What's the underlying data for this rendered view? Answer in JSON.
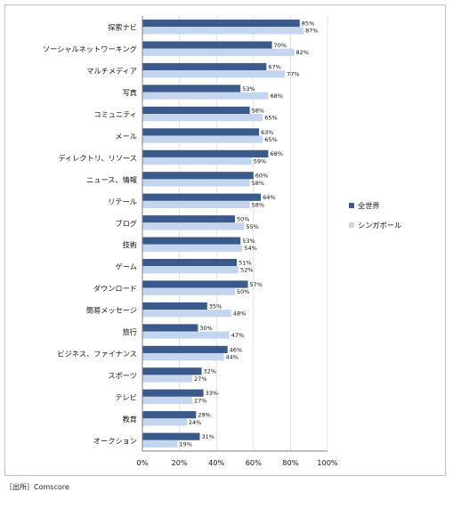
{
  "chart_data": {
    "type": "bar",
    "orientation": "horizontal",
    "categories": [
      "探索ナビ",
      "ソーシャルネットワーキング",
      "マルチメディア",
      "写真",
      "コミュニティ",
      "メール",
      "ディレクトリ、リソース",
      "ニュース、情報",
      "リテール",
      "ブログ",
      "技術",
      "ゲーム",
      "ダウンロード",
      "簡易メッセージ",
      "旅行",
      "ビジネス、ファイナンス",
      "スポーツ",
      "テレビ",
      "教育",
      "オークション"
    ],
    "series": [
      {
        "name": "全世界",
        "color": "#3a5a8c",
        "values": [
          85,
          70,
          67,
          53,
          58,
          63,
          68,
          60,
          64,
          50,
          53,
          51,
          57,
          35,
          30,
          46,
          32,
          33,
          29,
          31
        ],
        "labels": [
          "85%",
          "70%",
          "67%",
          "53%",
          "58%",
          "63%",
          "68%",
          "60%",
          "64%",
          "50%",
          "53%",
          "51%",
          "57%",
          "35%",
          "30%",
          "46%",
          "32%",
          "33%",
          "29%",
          "31%"
        ]
      },
      {
        "name": "シンガポール",
        "color": "#c4d6ef",
        "values": [
          87,
          82,
          77,
          68,
          65,
          65,
          59,
          58,
          58,
          55,
          54,
          52,
          50,
          48,
          47,
          44,
          27,
          27,
          24,
          19
        ],
        "labels": [
          "87%",
          "82%",
          "77%",
          "68%",
          "65%",
          "65%",
          "59%",
          "58%",
          "58%",
          "55%",
          "54%",
          "52%",
          "50%",
          "48%",
          "47%",
          "44%",
          "27%",
          "27%",
          "24%",
          "19%"
        ]
      }
    ],
    "xlim": [
      0,
      100
    ],
    "xticks": [
      "0%",
      "20%",
      "40%",
      "60%",
      "80%",
      "100%"
    ],
    "legend": "right",
    "grid": true
  },
  "source": "［出所］Comscore"
}
